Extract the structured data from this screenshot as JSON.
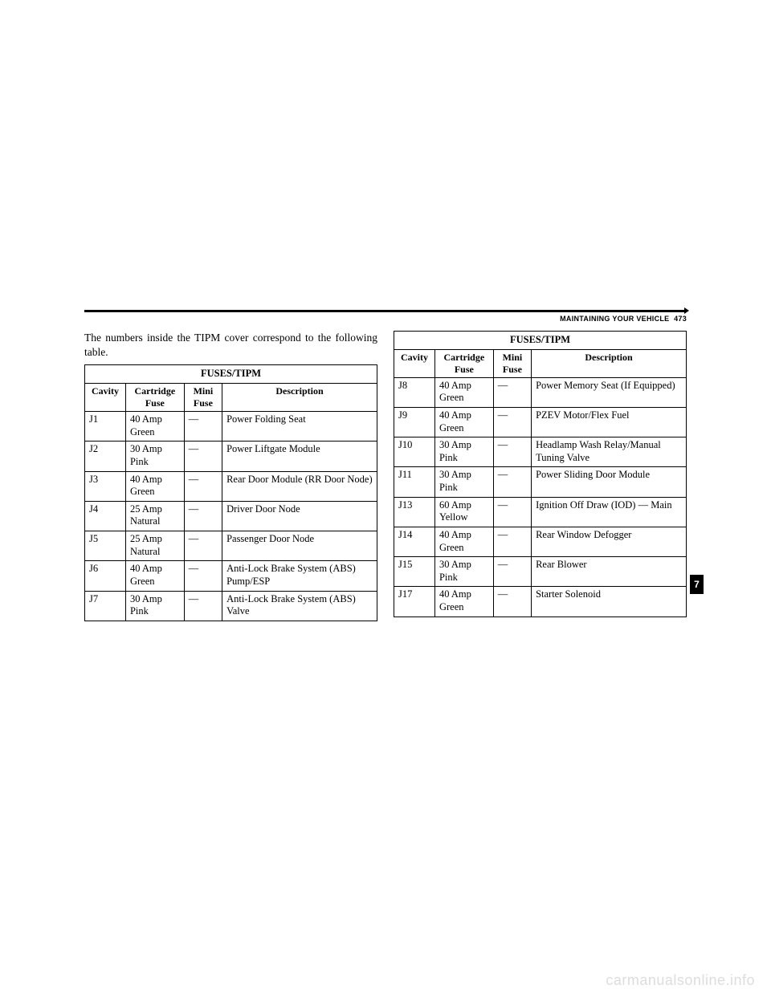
{
  "header": {
    "section": "MAINTAINING YOUR VEHICLE",
    "page": "473",
    "tab": "7"
  },
  "intro": "The numbers inside the TIPM cover correspond to the following table.",
  "table_title": "FUSES/TIPM",
  "columns": [
    "Cavity",
    "Cartridge Fuse",
    "Mini Fuse",
    "Description"
  ],
  "left_rows": [
    {
      "cavity": "J1",
      "cartridge": "40 Amp Green",
      "mini": "—",
      "desc": "Power Folding Seat"
    },
    {
      "cavity": "J2",
      "cartridge": "30 Amp Pink",
      "mini": "—",
      "desc": "Power Liftgate Module"
    },
    {
      "cavity": "J3",
      "cartridge": "40 Amp Green",
      "mini": "—",
      "desc": "Rear Door Module (RR Door Node)"
    },
    {
      "cavity": "J4",
      "cartridge": "25 Amp Natural",
      "mini": "—",
      "desc": "Driver Door Node"
    },
    {
      "cavity": "J5",
      "cartridge": "25 Amp Natural",
      "mini": "—",
      "desc": "Passenger Door Node"
    },
    {
      "cavity": "J6",
      "cartridge": "40 Amp Green",
      "mini": "—",
      "desc": "Anti-Lock Brake System (ABS) Pump/ESP"
    },
    {
      "cavity": "J7",
      "cartridge": "30 Amp Pink",
      "mini": "—",
      "desc": "Anti-Lock Brake System (ABS) Valve"
    }
  ],
  "right_rows": [
    {
      "cavity": "J8",
      "cartridge": "40 Amp Green",
      "mini": "—",
      "desc": "Power Memory Seat (If Equipped)"
    },
    {
      "cavity": "J9",
      "cartridge": "40 Amp Green",
      "mini": "—",
      "desc": "PZEV Motor/Flex Fuel"
    },
    {
      "cavity": "J10",
      "cartridge": "30 Amp Pink",
      "mini": "—",
      "desc": "Headlamp Wash Relay/Manual Tuning Valve"
    },
    {
      "cavity": "J11",
      "cartridge": "30 Amp Pink",
      "mini": "—",
      "desc": "Power Sliding Door Module"
    },
    {
      "cavity": "J13",
      "cartridge": "60 Amp Yellow",
      "mini": "—",
      "desc": "Ignition Off Draw (IOD) — Main"
    },
    {
      "cavity": "J14",
      "cartridge": "40 Amp Green",
      "mini": "—",
      "desc": "Rear Window Defogger"
    },
    {
      "cavity": "J15",
      "cartridge": "30 Amp Pink",
      "mini": "—",
      "desc": "Rear Blower"
    },
    {
      "cavity": "J17",
      "cartridge": "40 Amp Green",
      "mini": "—",
      "desc": "Starter Solenoid"
    }
  ],
  "watermark": "carmanualsonline.info"
}
